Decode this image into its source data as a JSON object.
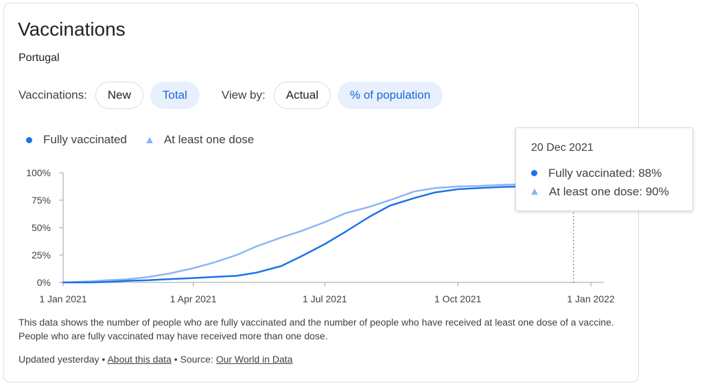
{
  "card": {
    "title": "Vaccinations",
    "subtitle": "Portugal"
  },
  "controls": {
    "vaccinations_label": "Vaccinations:",
    "new_label": "New",
    "total_label": "Total",
    "viewby_label": "View by:",
    "actual_label": "Actual",
    "percent_label": "% of population",
    "selected_vaccinations": "Total",
    "selected_viewby": "% of population"
  },
  "colors": {
    "fully": "#1a73e8",
    "one_dose": "#8ab4f8",
    "chip_active_bg": "#e8f0fe",
    "chip_active_text": "#1967d2"
  },
  "tooltip": {
    "date": "20 Dec 2021",
    "fully": "Fully vaccinated: 88%",
    "one_dose": "At least one dose: 90%"
  },
  "description": "This data shows the number of people who are fully vaccinated and the number of people who have received at least one dose of a vaccine. People who are fully vaccinated may have received more than one dose.",
  "footer": {
    "updated": "Updated yesterday",
    "separator": "•",
    "about_link": "About this data",
    "source_label": "Source:",
    "source_link": "Our World in Data"
  },
  "chart_data": {
    "type": "line",
    "x_type": "date",
    "xlim": [
      "2021-01-01",
      "2022-01-10"
    ],
    "ylim": [
      0,
      100
    ],
    "y_ticks": [
      0,
      25,
      50,
      75,
      100
    ],
    "y_tick_labels": [
      "0%",
      "25%",
      "50%",
      "75%",
      "100%"
    ],
    "x_ticks": [
      "2021-01-01",
      "2021-04-01",
      "2021-07-01",
      "2021-10-01",
      "2022-01-01"
    ],
    "x_tick_labels": [
      "1 Jan 2021",
      "1 Apr 2021",
      "1 Jul 2021",
      "1 Oct 2021",
      "1 Jan 2022"
    ],
    "legend_position": "top-left",
    "hover_date": "2021-12-20",
    "series": [
      {
        "name": "Fully vaccinated",
        "color": "#1a73e8",
        "marker": "circle",
        "points": [
          [
            "2021-01-01",
            0
          ],
          [
            "2021-01-20",
            0
          ],
          [
            "2021-02-01",
            0.5
          ],
          [
            "2021-02-15",
            1.5
          ],
          [
            "2021-03-01",
            2
          ],
          [
            "2021-03-15",
            3
          ],
          [
            "2021-04-01",
            4
          ],
          [
            "2021-04-15",
            5
          ],
          [
            "2021-05-01",
            6
          ],
          [
            "2021-05-15",
            9
          ],
          [
            "2021-06-01",
            15
          ],
          [
            "2021-06-15",
            24
          ],
          [
            "2021-07-01",
            35
          ],
          [
            "2021-07-15",
            46
          ],
          [
            "2021-08-01",
            60
          ],
          [
            "2021-08-15",
            70
          ],
          [
            "2021-09-01",
            77
          ],
          [
            "2021-09-15",
            82
          ],
          [
            "2021-10-01",
            85
          ],
          [
            "2021-10-15",
            86
          ],
          [
            "2021-11-01",
            87
          ],
          [
            "2021-11-15",
            87.5
          ],
          [
            "2021-11-24",
            88
          ]
        ]
      },
      {
        "name": "At least one dose",
        "color": "#8ab4f8",
        "marker": "triangle",
        "points": [
          [
            "2021-01-01",
            0
          ],
          [
            "2021-01-20",
            1
          ],
          [
            "2021-02-01",
            2
          ],
          [
            "2021-02-15",
            3
          ],
          [
            "2021-03-01",
            5
          ],
          [
            "2021-03-15",
            8
          ],
          [
            "2021-04-01",
            13
          ],
          [
            "2021-04-15",
            18
          ],
          [
            "2021-05-01",
            25
          ],
          [
            "2021-05-15",
            33
          ],
          [
            "2021-06-01",
            41
          ],
          [
            "2021-06-15",
            47
          ],
          [
            "2021-07-01",
            55
          ],
          [
            "2021-07-15",
            63
          ],
          [
            "2021-08-01",
            69
          ],
          [
            "2021-08-15",
            75
          ],
          [
            "2021-09-01",
            83
          ],
          [
            "2021-09-15",
            86
          ],
          [
            "2021-10-01",
            87.5
          ],
          [
            "2021-10-15",
            88
          ],
          [
            "2021-11-01",
            89
          ],
          [
            "2021-11-15",
            89.5
          ],
          [
            "2021-11-24",
            90
          ]
        ]
      }
    ]
  }
}
